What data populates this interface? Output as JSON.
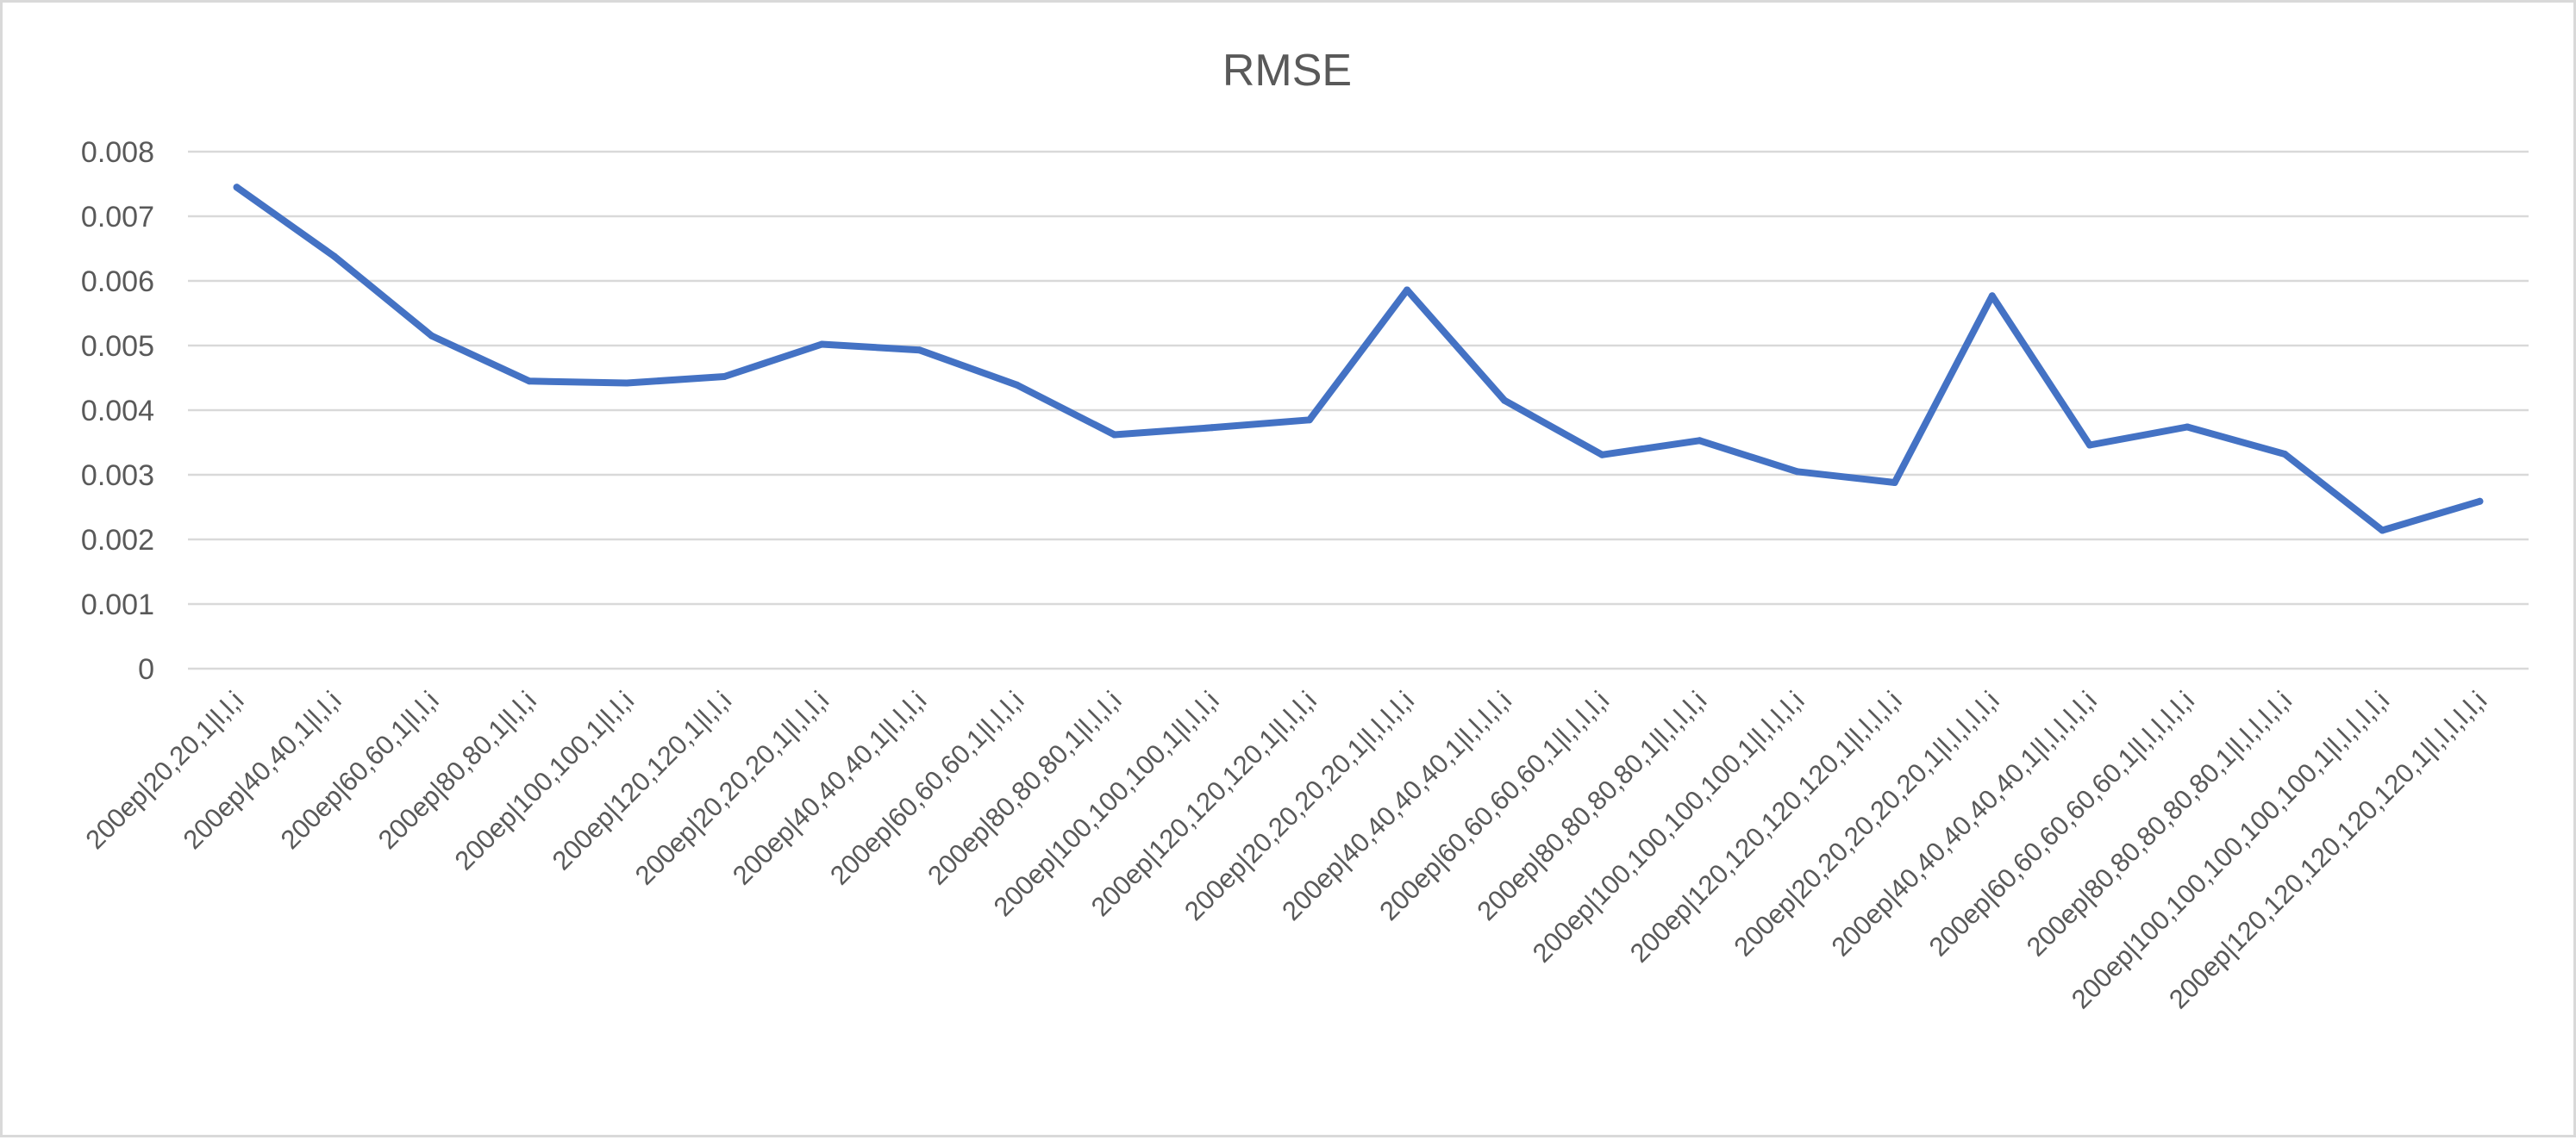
{
  "chart_data": {
    "type": "line",
    "title": "RMSE",
    "xlabel": "",
    "ylabel": "",
    "ylim": [
      0,
      0.008
    ],
    "yticks": [
      "0",
      "0.001",
      "0.002",
      "0.003",
      "0.004",
      "0.005",
      "0.006",
      "0.007",
      "0.008"
    ],
    "grid": true,
    "legend": "none",
    "categories": [
      "200ep|20,20,1|l,l,i",
      "200ep|40,40,1|l,l,i",
      "200ep|60,60,1|l,l,i",
      "200ep|80,80,1|l,l,i",
      "200ep|100,100,1|l,l,i",
      "200ep|120,120,1|l,l,i",
      "200ep|20,20,20,1|l,l,l,i",
      "200ep|40,40,40,1|l,l,l,i",
      "200ep|60,60,60,1|l,l,l,i",
      "200ep|80,80,80,1|l,l,l,i",
      "200ep|100,100,100,1|l,l,l,i",
      "200ep|120,120,120,1|l,l,l,i",
      "200ep|20,20,20,20,1|l,l,l,l,i",
      "200ep|40,40,40,40,1|l,l,l,l,i",
      "200ep|60,60,60,60,1|l,l,l,l,i",
      "200ep|80,80,80,80,1|l,l,l,l,i",
      "200ep|100,100,100,100,1|l,l,l,l,i",
      "200ep|120,120,120,120,1|l,l,l,l,i",
      "200ep|20,20,20,20,20,1|l,l,l,l,l,i",
      "200ep|40,40,40,40,40,1|l,l,l,l,l,i",
      "200ep|60,60,60,60,60,1|l,l,l,l,l,i",
      "200ep|80,80,80,80,80,1|l,l,l,l,l,i",
      "200ep|100,100,100,100,100,1|l,l,l,l,l,i",
      "200ep|120,120,120,120,120,1|l,l,l,l,l,i"
    ],
    "series": [
      {
        "color": "#4472c4",
        "values": [
          0.00745,
          0.00638,
          0.00515,
          0.00445,
          0.00442,
          0.00452,
          0.00502,
          0.00493,
          0.00439,
          0.00362,
          0.00373,
          0.00385,
          0.00586,
          0.00415,
          0.00331,
          0.00353,
          0.00305,
          0.00288,
          0.00577,
          0.00346,
          0.00374,
          0.00332,
          0.00214,
          0.00259
        ]
      }
    ]
  }
}
